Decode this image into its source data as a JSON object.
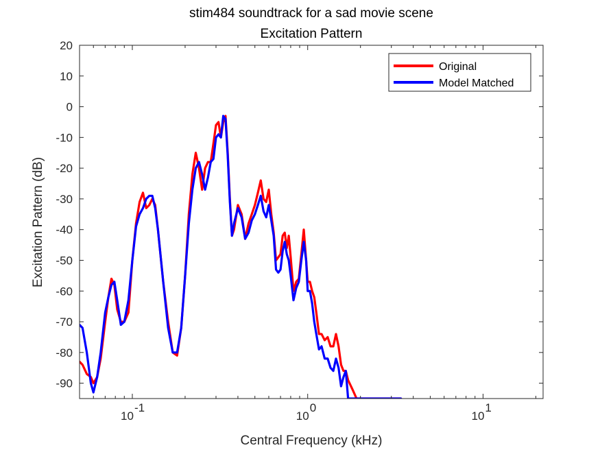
{
  "chart_data": {
    "type": "line",
    "title": "stim484 soundtrack for a sad movie scene",
    "subtitle": "Excitation Pattern",
    "xlabel": "Central Frequency (kHz)",
    "ylabel": "Excitation Pattern (dB)",
    "xscale": "log",
    "xlim": [
      0.05,
      22
    ],
    "ylim": [
      -95,
      20
    ],
    "yticks": [
      20,
      10,
      0,
      -10,
      -20,
      -30,
      -40,
      -50,
      -60,
      -70,
      -80,
      -90
    ],
    "ytick_labels": [
      "20",
      "10",
      "0",
      "-10",
      "-20",
      "-30",
      "-40",
      "-50",
      "-60",
      "-70",
      "-80",
      "-90"
    ],
    "xticks": [
      0.1,
      1,
      10
    ],
    "xtick_labels": [
      {
        "base": "10",
        "exp": "-1"
      },
      {
        "base": "10",
        "exp": "0"
      },
      {
        "base": "10",
        "exp": "1"
      }
    ],
    "grid": false,
    "legend": "top-right",
    "series": [
      {
        "name": "Original",
        "color": "#ff0000",
        "x": [
          0.05,
          0.052,
          0.055,
          0.058,
          0.06,
          0.063,
          0.066,
          0.07,
          0.073,
          0.076,
          0.079,
          0.082,
          0.086,
          0.09,
          0.095,
          0.1,
          0.105,
          0.11,
          0.115,
          0.12,
          0.125,
          0.13,
          0.135,
          0.14,
          0.15,
          0.16,
          0.17,
          0.18,
          0.19,
          0.2,
          0.21,
          0.22,
          0.23,
          0.24,
          0.25,
          0.26,
          0.27,
          0.28,
          0.29,
          0.3,
          0.31,
          0.32,
          0.33,
          0.34,
          0.35,
          0.36,
          0.37,
          0.38,
          0.4,
          0.42,
          0.44,
          0.46,
          0.48,
          0.5,
          0.52,
          0.54,
          0.56,
          0.58,
          0.6,
          0.62,
          0.64,
          0.66,
          0.68,
          0.7,
          0.72,
          0.74,
          0.76,
          0.78,
          0.8,
          0.83,
          0.86,
          0.89,
          0.92,
          0.95,
          0.98,
          1.0,
          1.03,
          1.06,
          1.09,
          1.12,
          1.16,
          1.2,
          1.25,
          1.3,
          1.35,
          1.4,
          1.45,
          1.5,
          1.55,
          1.6,
          1.65,
          1.7,
          1.8,
          1.9,
          2.0,
          2.1,
          2.2,
          2.3,
          2.4,
          2.5,
          2.6,
          2.7,
          2.8,
          2.9,
          3.0,
          3.1,
          3.2,
          3.3,
          3.4
        ],
        "values": [
          -83,
          -84,
          -87,
          -88,
          -90,
          -88,
          -82,
          -70,
          -62,
          -56,
          -58,
          -66,
          -70,
          -70,
          -67,
          -50,
          -38,
          -31,
          -28,
          -33,
          -32,
          -30,
          -32,
          -40,
          -57,
          -70,
          -80,
          -81,
          -72,
          -55,
          -35,
          -22,
          -15,
          -20,
          -27,
          -20,
          -18,
          -18,
          -12,
          -6,
          -5,
          -10,
          -5,
          -3,
          -15,
          -30,
          -42,
          -40,
          -32,
          -35,
          -43,
          -38,
          -35,
          -32,
          -28,
          -24,
          -30,
          -31,
          -27,
          -35,
          -41,
          -50,
          -49,
          -48,
          -42,
          -41,
          -46,
          -42,
          -49,
          -60,
          -57,
          -56,
          -48,
          -40,
          -50,
          -57,
          -57,
          -60,
          -62,
          -67,
          -74,
          -74,
          -76,
          -75,
          -78,
          -78,
          -74,
          -78,
          -84,
          -86,
          -86,
          -89,
          -92,
          -95,
          -95,
          -95,
          -95,
          -95,
          -95,
          -95,
          -95,
          -95,
          -95,
          -95,
          -95,
          -95,
          -95,
          -95,
          -95
        ]
      },
      {
        "name": "Model Matched",
        "color": "#0000ff",
        "x": [
          0.05,
          0.052,
          0.055,
          0.058,
          0.06,
          0.063,
          0.066,
          0.07,
          0.073,
          0.076,
          0.079,
          0.082,
          0.086,
          0.09,
          0.095,
          0.1,
          0.105,
          0.11,
          0.115,
          0.12,
          0.125,
          0.13,
          0.135,
          0.14,
          0.15,
          0.16,
          0.17,
          0.18,
          0.19,
          0.2,
          0.21,
          0.22,
          0.23,
          0.24,
          0.25,
          0.26,
          0.27,
          0.28,
          0.29,
          0.3,
          0.31,
          0.32,
          0.33,
          0.34,
          0.35,
          0.36,
          0.37,
          0.38,
          0.4,
          0.42,
          0.44,
          0.46,
          0.48,
          0.5,
          0.52,
          0.54,
          0.56,
          0.58,
          0.6,
          0.62,
          0.64,
          0.66,
          0.68,
          0.7,
          0.72,
          0.74,
          0.76,
          0.78,
          0.8,
          0.83,
          0.86,
          0.89,
          0.92,
          0.95,
          0.98,
          1.0,
          1.03,
          1.06,
          1.09,
          1.12,
          1.16,
          1.2,
          1.25,
          1.3,
          1.35,
          1.4,
          1.45,
          1.5,
          1.55,
          1.6,
          1.65,
          1.7,
          1.8,
          1.9,
          2.0,
          2.1,
          2.2,
          2.3,
          2.4,
          2.5,
          2.6,
          2.7,
          2.8,
          2.9,
          3.0,
          3.1,
          3.2,
          3.3,
          3.4
        ],
        "values": [
          -71,
          -72,
          -80,
          -90,
          -93,
          -88,
          -80,
          -67,
          -62,
          -58,
          -57,
          -63,
          -71,
          -70,
          -63,
          -50,
          -39,
          -35,
          -33,
          -30,
          -29,
          -29,
          -33,
          -40,
          -57,
          -72,
          -80,
          -80,
          -72,
          -55,
          -38,
          -27,
          -20,
          -18,
          -22,
          -27,
          -23,
          -18,
          -17,
          -10,
          -9,
          -10,
          -3,
          -4,
          -16,
          -31,
          -42,
          -38,
          -33,
          -36,
          -43,
          -41,
          -37,
          -35,
          -32,
          -29,
          -34,
          -36,
          -32,
          -37,
          -42,
          -53,
          -54,
          -53,
          -47,
          -44,
          -48,
          -50,
          -55,
          -63,
          -59,
          -57,
          -50,
          -44,
          -50,
          -60,
          -60,
          -64,
          -70,
          -74,
          -79,
          -78,
          -82,
          -82,
          -85,
          -86,
          -82,
          -85,
          -91,
          -88,
          -86,
          -95,
          -95,
          -95,
          -95,
          -95,
          -95,
          -95,
          -95,
          -95,
          -95,
          -95,
          -95,
          -95,
          -95,
          -95,
          -95,
          -95,
          -95
        ]
      }
    ]
  }
}
